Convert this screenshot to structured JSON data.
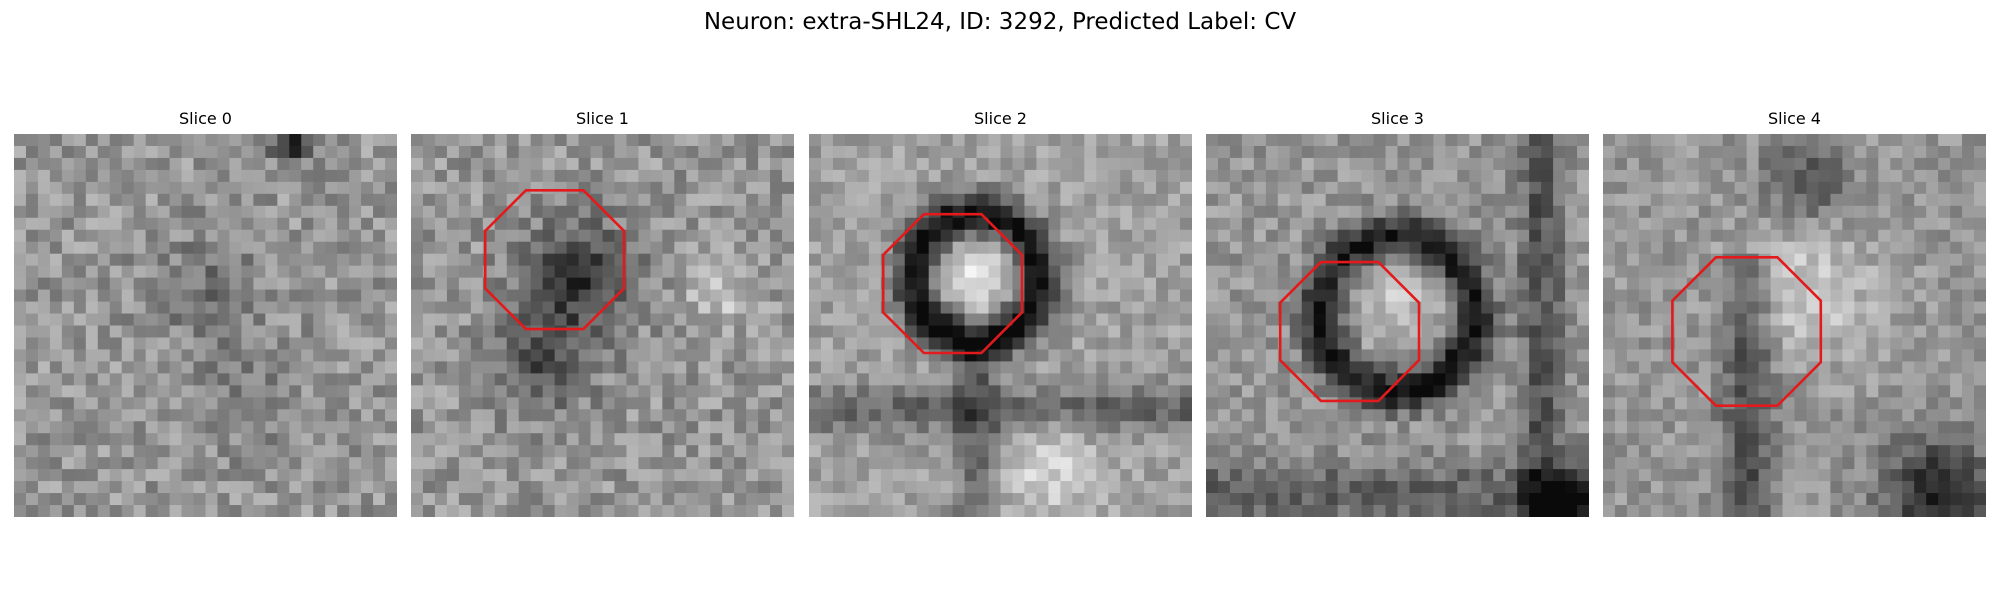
{
  "figure": {
    "title": "Neuron: extra-SHL24, ID: 3292, Predicted Label: CV"
  },
  "panels": [
    {
      "title": "Slice 0",
      "has_outline": false
    },
    {
      "title": "Slice 1",
      "has_outline": true
    },
    {
      "title": "Slice 2",
      "has_outline": true
    },
    {
      "title": "Slice 3",
      "has_outline": true
    },
    {
      "title": "Slice 4",
      "has_outline": true
    }
  ],
  "colors": {
    "outline": "#e31a1c",
    "background": "#ffffff"
  }
}
